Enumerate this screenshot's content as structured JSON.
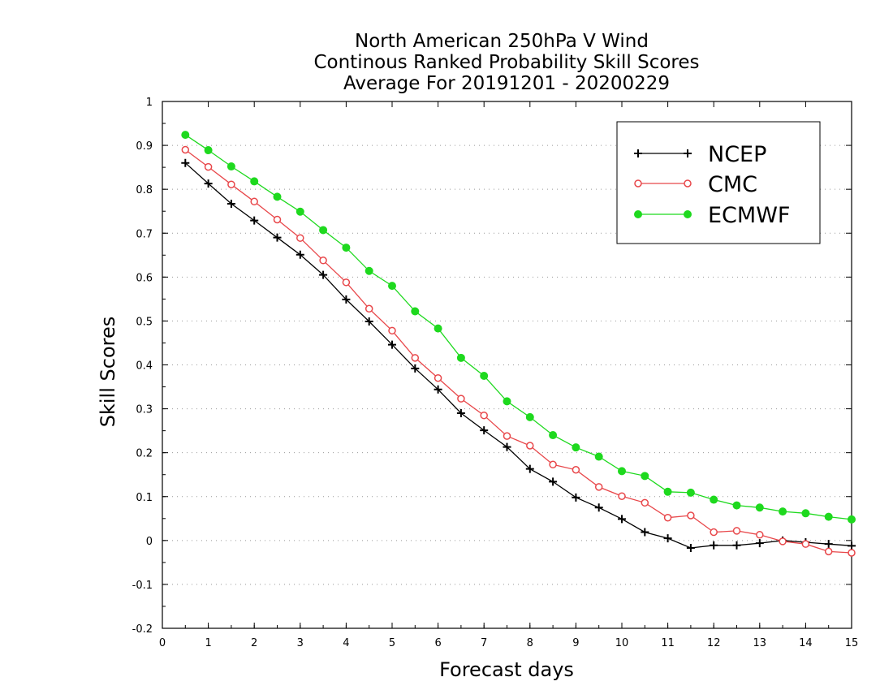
{
  "chart_data": {
    "type": "line",
    "title": [
      "North American 250hPa V Wind",
      "Continous Ranked Probability Skill Scores",
      "Average For 20191201 - 20200229"
    ],
    "xlabel": "Forecast days",
    "ylabel": "Skill Scores",
    "xlim": [
      0,
      15
    ],
    "ylim": [
      -0.2,
      1
    ],
    "xticks": [
      "0",
      "1",
      "2",
      "3",
      "4",
      "5",
      "6",
      "7",
      "8",
      "9",
      "10",
      "11",
      "12",
      "13",
      "14",
      "15"
    ],
    "yticks": [
      "-0.2",
      "-0.1",
      "0",
      "0.1",
      "0.2",
      "0.3",
      "0.4",
      "0.5",
      "0.6",
      "0.7",
      "0.8",
      "0.9",
      "1"
    ],
    "grid": "dotted horizontal",
    "legend_position": "top-right",
    "x": [
      0.5,
      1,
      1.5,
      2,
      2.5,
      3,
      3.5,
      4,
      4.5,
      5,
      5.5,
      6,
      6.5,
      7,
      7.5,
      8,
      8.5,
      9,
      9.5,
      10,
      10.5,
      11,
      11.5,
      12,
      12.5,
      13,
      13.5,
      14,
      14.5,
      15
    ],
    "series": [
      {
        "name": "NCEP",
        "color": "#000000",
        "marker": "plus",
        "values": [
          0.86,
          0.813,
          0.767,
          0.729,
          0.69,
          0.651,
          0.605,
          0.549,
          0.499,
          0.446,
          0.392,
          0.344,
          0.29,
          0.251,
          0.213,
          0.163,
          0.134,
          0.098,
          0.075,
          0.049,
          0.019,
          0.005,
          -0.017,
          -0.011,
          -0.011,
          -0.006,
          0.0,
          -0.004,
          -0.008,
          -0.012
        ]
      },
      {
        "name": "CMC",
        "color": "#e8474a",
        "marker": "open-circle",
        "values": [
          0.89,
          0.851,
          0.811,
          0.772,
          0.731,
          0.689,
          0.638,
          0.588,
          0.528,
          0.478,
          0.416,
          0.37,
          0.323,
          0.285,
          0.238,
          0.216,
          0.173,
          0.161,
          0.122,
          0.101,
          0.086,
          0.052,
          0.057,
          0.019,
          0.022,
          0.013,
          -0.002,
          -0.008,
          -0.025,
          -0.028
        ]
      },
      {
        "name": "ECMWF",
        "color": "#1ed91e",
        "marker": "filled-circle",
        "values": [
          0.924,
          0.889,
          0.852,
          0.818,
          0.783,
          0.749,
          0.707,
          0.667,
          0.614,
          0.58,
          0.522,
          0.483,
          0.416,
          0.375,
          0.317,
          0.281,
          0.24,
          0.212,
          0.191,
          0.158,
          0.147,
          0.111,
          0.109,
          0.093,
          0.08,
          0.075,
          0.066,
          0.062,
          0.054,
          0.048
        ]
      }
    ]
  }
}
